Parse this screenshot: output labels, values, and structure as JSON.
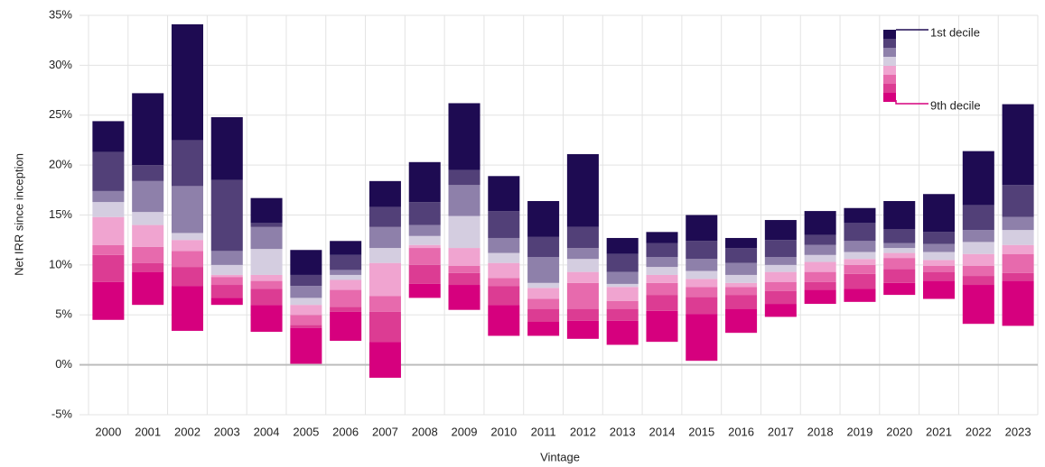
{
  "chart_data": {
    "type": "floating_stacked_bar",
    "y_label": "Net IRR since inception",
    "x_label": "Vintage",
    "legend_top": "1st decile",
    "legend_bottom": "9th decile",
    "categories": [
      "2000",
      "2001",
      "2002",
      "2003",
      "2004",
      "2005",
      "2006",
      "2007",
      "2008",
      "2009",
      "2010",
      "2011",
      "2012",
      "2013",
      "2014",
      "2015",
      "2016",
      "2017",
      "2018",
      "2019",
      "2020",
      "2021",
      "2022",
      "2023"
    ],
    "base": [
      4.5,
      6.0,
      3.4,
      6.0,
      3.3,
      0.1,
      2.4,
      -1.3,
      6.7,
      5.5,
      2.9,
      2.9,
      2.6,
      2.0,
      2.3,
      0.4,
      3.2,
      4.8,
      6.1,
      6.3,
      7.0,
      6.6,
      4.1,
      3.9
    ],
    "series": [
      {
        "color": "#d6007e",
        "values": [
          3.8,
          3.3,
          4.5,
          0.7,
          2.7,
          3.6,
          2.9,
          3.6,
          1.4,
          2.5,
          3.1,
          1.4,
          1.8,
          2.4,
          3.1,
          4.7,
          2.4,
          1.3,
          1.4,
          1.3,
          1.2,
          1.8,
          3.9,
          4.5
        ]
      },
      {
        "color": "#dc3c93",
        "values": [
          2.7,
          0.9,
          1.9,
          1.3,
          1.6,
          0.3,
          0.5,
          3.0,
          1.9,
          1.2,
          1.9,
          1.3,
          1.2,
          1.2,
          1.6,
          1.7,
          1.4,
          1.3,
          0.8,
          1.5,
          1.4,
          0.9,
          0.9,
          0.8
        ]
      },
      {
        "color": "#e76aad",
        "values": [
          1.0,
          1.6,
          1.6,
          0.8,
          0.8,
          1.0,
          1.7,
          1.6,
          1.7,
          0.7,
          0.8,
          1.0,
          2.6,
          0.8,
          1.2,
          1.0,
          0.8,
          0.9,
          1.0,
          0.9,
          1.1,
          0.6,
          1.0,
          1.9
        ]
      },
      {
        "color": "#f0a4d0",
        "values": [
          2.8,
          2.2,
          1.1,
          0.2,
          0.6,
          1.0,
          1.0,
          3.3,
          0.3,
          1.8,
          1.5,
          1.1,
          1.1,
          1.4,
          0.8,
          0.8,
          0.4,
          1.0,
          1.0,
          0.6,
          0.5,
          0.6,
          1.2,
          0.9
        ]
      },
      {
        "color": "#d4cde0",
        "values": [
          1.5,
          1.3,
          0.7,
          1.0,
          2.6,
          0.7,
          0.5,
          1.5,
          0.9,
          3.2,
          1.0,
          0.5,
          1.3,
          0.3,
          0.8,
          0.8,
          0.8,
          0.7,
          0.7,
          0.7,
          0.5,
          0.8,
          1.2,
          1.5
        ]
      },
      {
        "color": "#8e80aa",
        "values": [
          1.1,
          3.1,
          4.7,
          1.4,
          2.2,
          1.2,
          0.5,
          2.1,
          1.1,
          3.1,
          1.5,
          2.6,
          1.1,
          1.2,
          1.0,
          1.2,
          1.2,
          0.8,
          1.0,
          1.1,
          0.5,
          0.8,
          1.2,
          1.3
        ]
      },
      {
        "color": "#524078",
        "values": [
          3.9,
          1.6,
          4.6,
          7.1,
          0.4,
          1.1,
          1.5,
          2.0,
          2.3,
          1.5,
          2.7,
          2.0,
          2.1,
          1.8,
          1.4,
          1.8,
          1.5,
          1.7,
          1.0,
          1.8,
          1.4,
          1.2,
          2.5,
          3.2
        ]
      },
      {
        "color": "#1e0b52",
        "values": [
          3.1,
          7.2,
          11.6,
          6.3,
          2.5,
          2.5,
          1.4,
          2.6,
          4.0,
          6.7,
          3.5,
          3.6,
          7.3,
          1.6,
          1.1,
          2.6,
          1.0,
          2.0,
          2.4,
          1.5,
          2.8,
          3.8,
          5.4,
          8.1
        ]
      }
    ],
    "ylim": [
      -5,
      35
    ],
    "yticks": [
      {
        "value": -5,
        "label": "-5%"
      },
      {
        "value": 0,
        "label": "0%"
      },
      {
        "value": 5,
        "label": "5%"
      },
      {
        "value": 10,
        "label": "10%"
      },
      {
        "value": 15,
        "label": "15%"
      },
      {
        "value": 20,
        "label": "20%"
      },
      {
        "value": 25,
        "label": "25%"
      },
      {
        "value": 30,
        "label": "30%"
      },
      {
        "value": 35,
        "label": "35%"
      }
    ],
    "grid": true
  }
}
